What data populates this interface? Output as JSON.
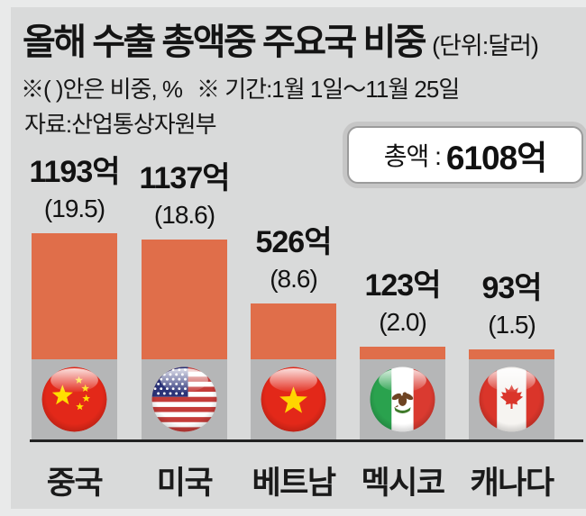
{
  "title": "올해 수출 총액중 주요국 비중",
  "title_unit": "(단위:달러)",
  "note_left": "※( )안은 비중, %",
  "note_right": "※ 기간:1월 1일～11월 25일",
  "source": "자료:산업통상자원부",
  "total": {
    "label": "총액 :",
    "value": "6108억"
  },
  "chart_data": {
    "type": "bar",
    "categories": [
      "중국",
      "미국",
      "베트남",
      "멕시코",
      "캐나다"
    ],
    "values": [
      1193,
      1137,
      526,
      123,
      93
    ],
    "value_labels": [
      "1193억",
      "1137억",
      "526억",
      "123억",
      "93억"
    ],
    "percents": [
      19.5,
      18.6,
      8.6,
      2.0,
      1.5
    ],
    "percent_labels": [
      "(19.5)",
      "(18.6)",
      "(8.6)",
      "(2.0)",
      "(1.5)"
    ],
    "flags": [
      "china",
      "usa",
      "vietnam",
      "mexico",
      "canada"
    ],
    "title": "올해 수출 총액중 주요국 비중 (단위:달러)",
    "ylabel": "",
    "xlabel": "",
    "bar_color": "#e06e4a",
    "band_color": "#b5b6b7",
    "axis_color": "#222222",
    "background_color": "#d9dada",
    "unit": "억 달러"
  }
}
